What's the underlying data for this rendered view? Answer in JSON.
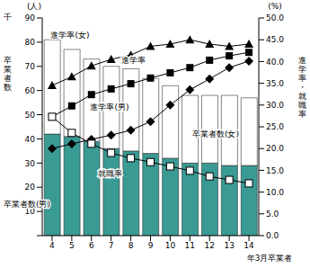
{
  "chart_data": {
    "type": "bar",
    "stacked": true,
    "x_label": "年3月卒業者",
    "y_label": "卒業者数",
    "y_units": [
      "(人)",
      "千"
    ],
    "y2_label": "進学率・就職率",
    "y2_unit": "(%)",
    "categories": [
      "4",
      "5",
      "6",
      "7",
      "8",
      "9",
      "10",
      "11",
      "12",
      "13",
      "14"
    ],
    "ylim": [
      0,
      90
    ],
    "yticks": [
      0,
      10,
      20,
      30,
      40,
      50,
      60,
      70,
      80,
      90
    ],
    "y2lim": [
      0,
      50
    ],
    "y2ticks": [
      {
        "value": 0,
        "label": "0.0"
      },
      {
        "value": 5,
        "label": "5.0"
      },
      {
        "value": 10,
        "label": "10.0"
      },
      {
        "value": 15,
        "label": "15.0"
      },
      {
        "value": 20,
        "label": "20.0"
      },
      {
        "value": 25,
        "label": "25.0"
      },
      {
        "value": 30,
        "label": "30.0"
      },
      {
        "value": 35,
        "label": "35.0"
      },
      {
        "value": 40,
        "label": "40.0"
      },
      {
        "value": 45,
        "label": "45.0"
      },
      {
        "value": 50,
        "label": "50.0"
      }
    ],
    "series": [
      {
        "name": "卒業者数(男)",
        "type": "bar",
        "color": "#3a9a94",
        "values": [
          42,
          41,
          39,
          36,
          35,
          34,
          32,
          30,
          30,
          29,
          29
        ]
      },
      {
        "name": "卒業者数(女)",
        "type": "bar",
        "color": "#ffffff",
        "values": [
          39,
          36,
          34,
          34,
          34,
          31,
          30,
          28,
          28,
          29,
          28
        ]
      },
      {
        "name": "進学率(女)",
        "type": "line",
        "axis": "y2",
        "color": "#000000",
        "marker": "triangle",
        "values": [
          34.5,
          36.5,
          39.0,
          40.5,
          41.5,
          43.5,
          44.0,
          45.0,
          44.0,
          43.5,
          44.0
        ]
      },
      {
        "name": "進学率",
        "type": "line",
        "axis": "y2",
        "color": "#000000",
        "marker": "square",
        "values": [
          27.3,
          29.8,
          32.4,
          33.7,
          34.9,
          36.2,
          37.4,
          38.6,
          40.3,
          41.3,
          42.1
        ]
      },
      {
        "name": "進学率(男)",
        "type": "line",
        "axis": "y2",
        "color": "#000000",
        "marker": "diamond",
        "values": [
          20.0,
          21.1,
          22.1,
          23.1,
          24.2,
          26.2,
          30.0,
          33.5,
          36.0,
          38.6,
          40.1
        ]
      },
      {
        "name": "就職率",
        "type": "line",
        "axis": "y2",
        "color": "#000000",
        "marker": "open-square",
        "values": [
          27.3,
          23.6,
          21.1,
          19.0,
          17.8,
          16.9,
          15.9,
          14.9,
          13.6,
          12.8,
          12.0
        ]
      }
    ]
  }
}
